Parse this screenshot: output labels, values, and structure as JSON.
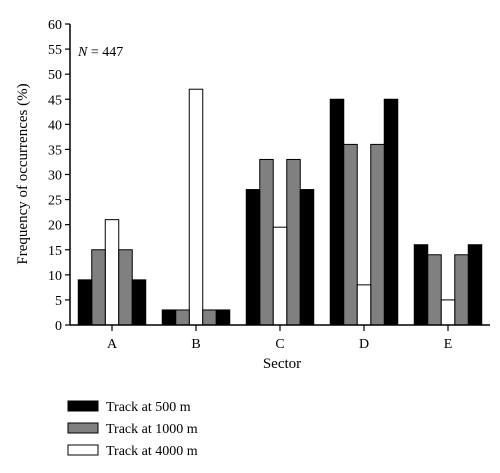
{
  "chart_data": {
    "type": "bar",
    "annotation": {
      "variable": "N",
      "text": " = 447"
    },
    "xlabel": "Sector",
    "ylabel": "Frequency of occurrences (%)",
    "ylim": [
      0,
      60
    ],
    "yticks": [
      0,
      5,
      10,
      15,
      20,
      25,
      30,
      35,
      40,
      45,
      50,
      55,
      60
    ],
    "categories": [
      "A",
      "B",
      "C",
      "D",
      "E"
    ],
    "grid": false,
    "legend_position": "bottom-left",
    "series": [
      {
        "name": "Track at 500 m",
        "color": "#000000",
        "values": [
          9,
          3,
          27,
          45,
          16
        ]
      },
      {
        "name": "Track at 1000 m",
        "color": "#808080",
        "values": [
          15,
          3,
          33,
          36,
          14
        ]
      },
      {
        "name": "Track at 4000 m",
        "color": "#ffffff",
        "values": [
          21,
          47,
          19.5,
          8,
          5
        ]
      }
    ],
    "bar_groups": [
      [
        {
          "series": 0,
          "value": 9
        },
        {
          "series": 1,
          "value": 15
        },
        {
          "series": 2,
          "value": 21
        },
        {
          "series": 1,
          "value": 15
        },
        {
          "series": 0,
          "value": 9
        }
      ],
      [
        {
          "series": 0,
          "value": 3
        },
        {
          "series": 1,
          "value": 3
        },
        {
          "series": 2,
          "value": 47
        },
        {
          "series": 1,
          "value": 3
        },
        {
          "series": 0,
          "value": 3
        }
      ],
      [
        {
          "series": 0,
          "value": 27
        },
        {
          "series": 1,
          "value": 33
        },
        {
          "series": 2,
          "value": 19.5
        },
        {
          "series": 1,
          "value": 33
        },
        {
          "series": 0,
          "value": 27
        }
      ],
      [
        {
          "series": 0,
          "value": 45
        },
        {
          "series": 1,
          "value": 36
        },
        {
          "series": 2,
          "value": 8
        },
        {
          "series": 1,
          "value": 36
        },
        {
          "series": 0,
          "value": 45
        }
      ],
      [
        {
          "series": 0,
          "value": 16
        },
        {
          "series": 1,
          "value": 14
        },
        {
          "series": 2,
          "value": 5
        },
        {
          "series": 1,
          "value": 14
        },
        {
          "series": 0,
          "value": 16
        }
      ]
    ]
  }
}
